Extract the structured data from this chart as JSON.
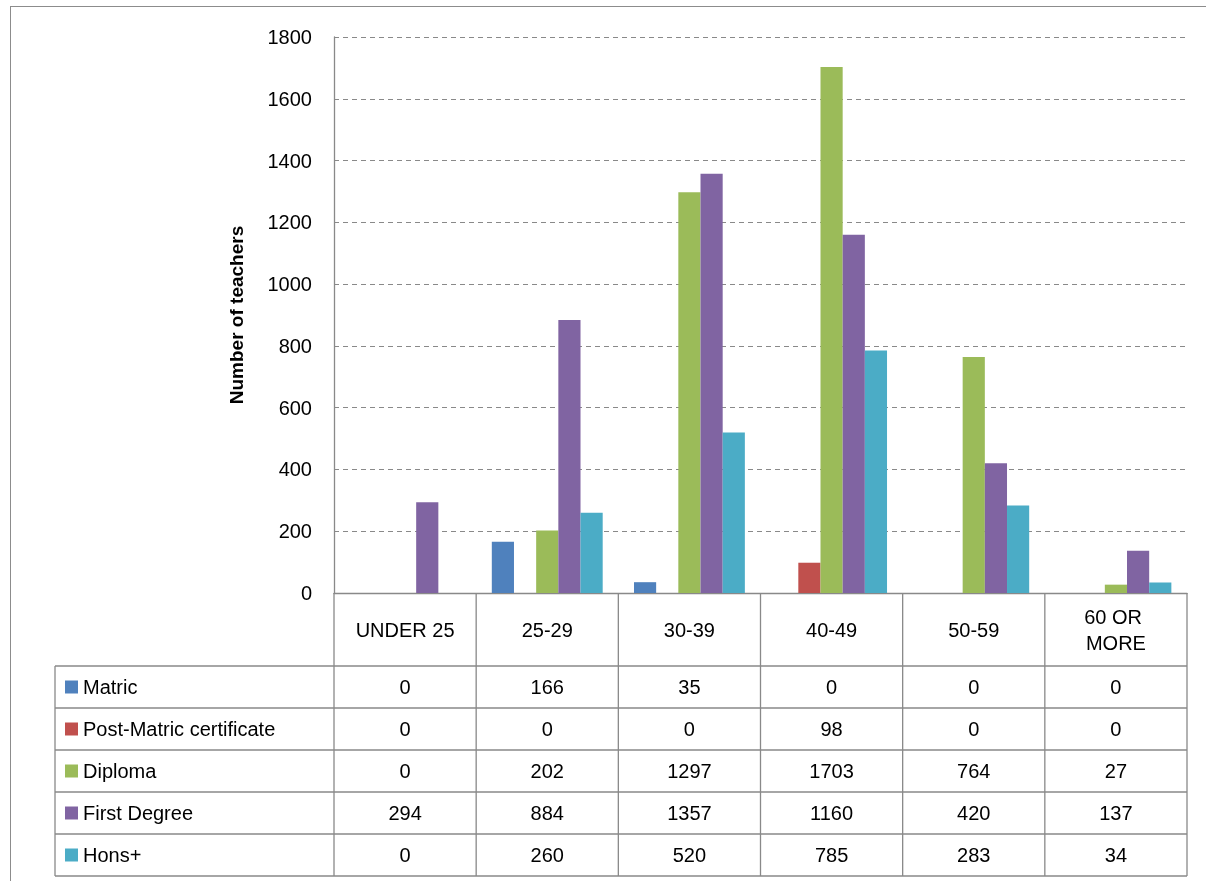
{
  "chart_data": {
    "type": "bar",
    "ylabel": "Number of teachers",
    "categories": [
      "UNDER 25",
      "25-29",
      "30-39",
      "40-49",
      "50-59",
      "60 OR MORE"
    ],
    "series": [
      {
        "name": "Matric",
        "color": "#4f81bd",
        "values": [
          0,
          166,
          35,
          0,
          0,
          0
        ]
      },
      {
        "name": "Post-Matric certificate",
        "color": "#c0504d",
        "values": [
          0,
          0,
          0,
          98,
          0,
          0
        ]
      },
      {
        "name": "Diploma",
        "color": "#9bbb59",
        "values": [
          0,
          202,
          1297,
          1703,
          764,
          27
        ]
      },
      {
        "name": "First Degree",
        "color": "#8064a2",
        "values": [
          294,
          884,
          1357,
          1160,
          420,
          137
        ]
      },
      {
        "name": "Hons+",
        "color": "#4bacc6",
        "values": [
          0,
          260,
          520,
          785,
          283,
          34
        ]
      }
    ],
    "ylim": [
      0,
      1800
    ],
    "yticks": [
      0,
      200,
      400,
      600,
      800,
      1000,
      1200,
      1400,
      1600,
      1800
    ],
    "grid": "y",
    "legend": "bottom left",
    "data_labels": true
  }
}
